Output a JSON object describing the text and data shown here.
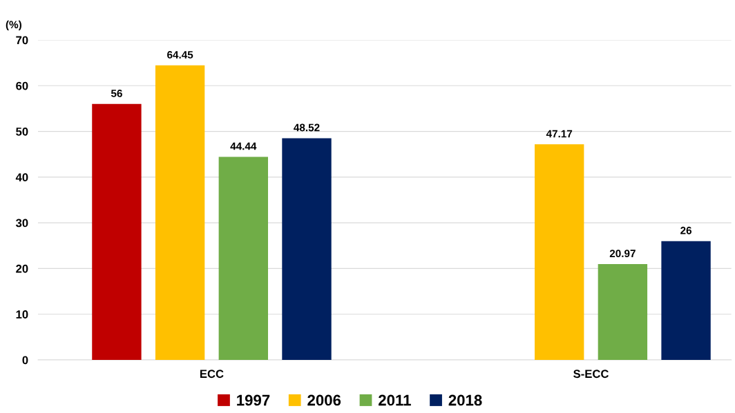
{
  "chart_data": {
    "type": "bar",
    "ylabel": "(%)",
    "categories": [
      "ECC",
      "S-ECC"
    ],
    "series": [
      {
        "name": "1997",
        "color": "#c00000",
        "values": [
          56,
          null
        ]
      },
      {
        "name": "2006",
        "color": "#ffc000",
        "values": [
          64.45,
          47.17
        ]
      },
      {
        "name": "2011",
        "color": "#70ad47",
        "values": [
          44.44,
          20.97
        ]
      },
      {
        "name": "2018",
        "color": "#002060",
        "values": [
          48.52,
          26
        ]
      }
    ],
    "ylim": [
      0,
      70
    ],
    "yticks": [
      0,
      10,
      20,
      30,
      40,
      50,
      60,
      70
    ],
    "grid": "y",
    "legend": "bottom",
    "data_labels": true
  }
}
